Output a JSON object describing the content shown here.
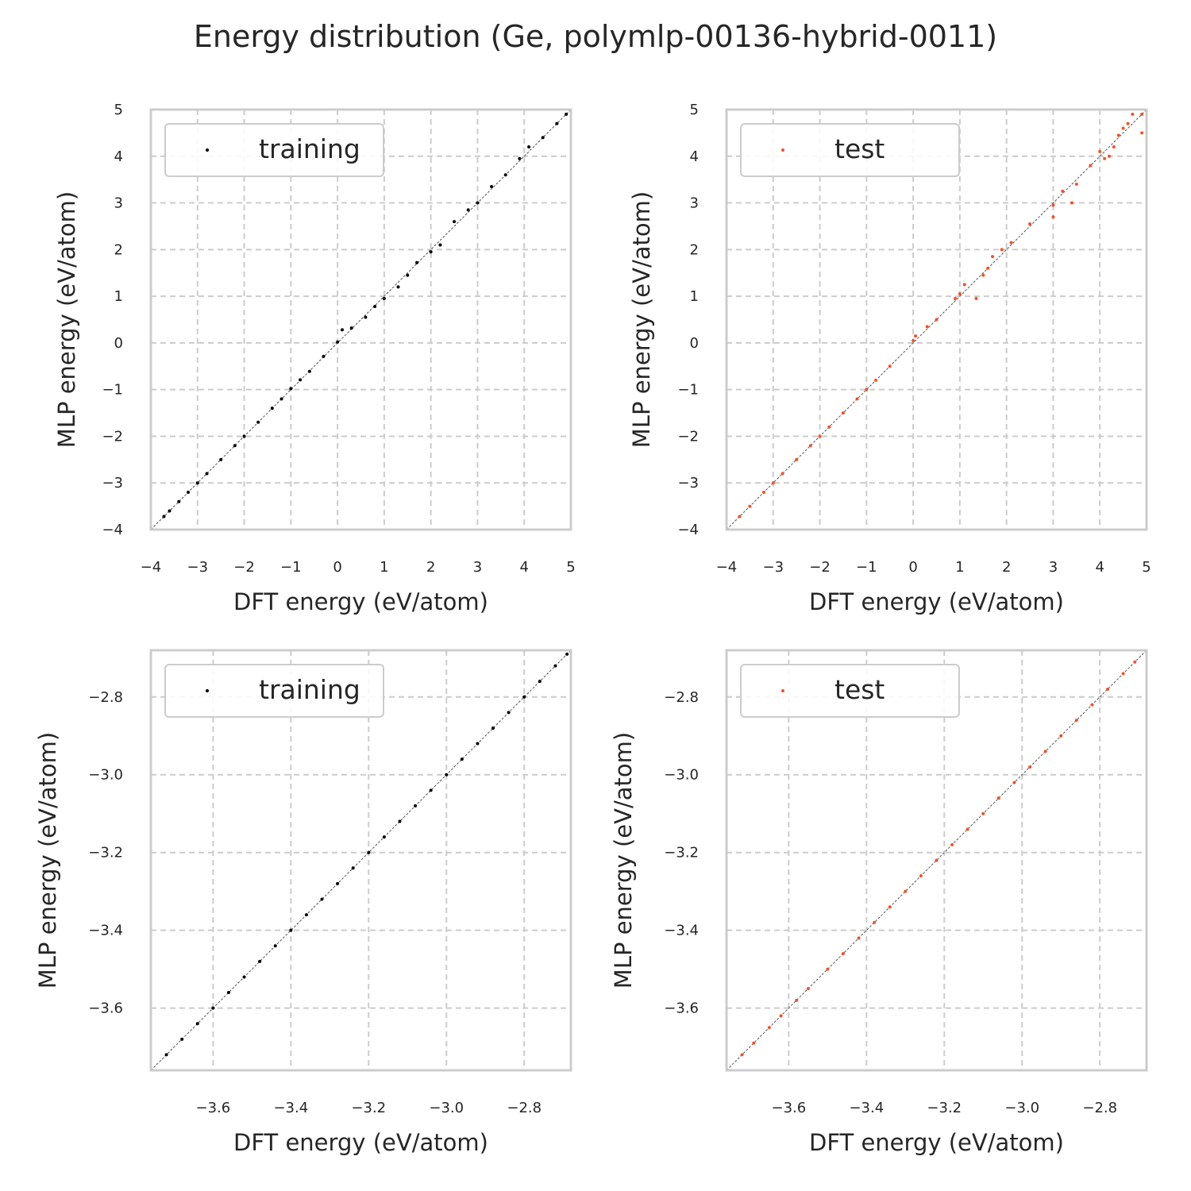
{
  "title": "Energy distribution (Ge, polymlp-00136-hybrid-0011)",
  "colors": {
    "training": "#000000",
    "test": "#f0522a",
    "grid": "#cccccc",
    "frame": "#cccccc",
    "diagonal": "#555555"
  },
  "chart_data": [
    {
      "type": "scatter",
      "xlabel": "DFT energy (eV/atom)",
      "ylabel": "MLP energy (eV/atom)",
      "xlim": [
        -4,
        5
      ],
      "ylim": [
        -4,
        5
      ],
      "xticks": [
        -4,
        -3,
        -2,
        -1,
        0,
        1,
        2,
        3,
        4,
        5
      ],
      "xtick_labels": [
        "−4",
        "−3",
        "−2",
        "−1",
        "0",
        "1",
        "2",
        "3",
        "4",
        "5"
      ],
      "yticks": [
        -4,
        -3,
        -2,
        -1,
        0,
        1,
        2,
        3,
        4,
        5
      ],
      "ytick_labels": [
        "−4",
        "−3",
        "−2",
        "−1",
        "0",
        "1",
        "2",
        "3",
        "4",
        "5"
      ],
      "grid": true,
      "legend_position": "upper-left",
      "series": [
        {
          "name": "training",
          "color": "#000000",
          "points": [
            [
              -3.72,
              -3.72
            ],
            [
              -3.6,
              -3.6
            ],
            [
              -3.4,
              -3.4
            ],
            [
              -3.2,
              -3.2
            ],
            [
              -3.0,
              -3.0
            ],
            [
              -2.8,
              -2.8
            ],
            [
              -2.5,
              -2.5
            ],
            [
              -2.2,
              -2.2
            ],
            [
              -2.0,
              -2.0
            ],
            [
              -1.7,
              -1.7
            ],
            [
              -1.4,
              -1.4
            ],
            [
              -1.2,
              -1.2
            ],
            [
              -1.0,
              -0.98
            ],
            [
              -0.8,
              -0.79
            ],
            [
              -0.6,
              -0.61
            ],
            [
              -0.3,
              -0.29
            ],
            [
              0.0,
              0.02
            ],
            [
              0.1,
              0.28
            ],
            [
              0.3,
              0.32
            ],
            [
              0.6,
              0.55
            ],
            [
              0.8,
              0.78
            ],
            [
              1.0,
              0.95
            ],
            [
              1.3,
              1.2
            ],
            [
              1.5,
              1.45
            ],
            [
              1.7,
              1.72
            ],
            [
              2.0,
              1.95
            ],
            [
              2.2,
              2.1
            ],
            [
              2.5,
              2.6
            ],
            [
              2.8,
              2.85
            ],
            [
              3.0,
              3.0
            ],
            [
              3.3,
              3.35
            ],
            [
              3.6,
              3.6
            ],
            [
              3.9,
              3.95
            ],
            [
              4.1,
              4.2
            ],
            [
              4.4,
              4.4
            ],
            [
              4.7,
              4.7
            ],
            [
              4.9,
              4.9
            ]
          ]
        }
      ]
    },
    {
      "type": "scatter",
      "xlabel": "DFT energy (eV/atom)",
      "ylabel": "MLP energy (eV/atom)",
      "xlim": [
        -4,
        5
      ],
      "ylim": [
        -4,
        5
      ],
      "xticks": [
        -4,
        -3,
        -2,
        -1,
        0,
        1,
        2,
        3,
        4,
        5
      ],
      "xtick_labels": [
        "−4",
        "−3",
        "−2",
        "−1",
        "0",
        "1",
        "2",
        "3",
        "4",
        "5"
      ],
      "yticks": [
        -4,
        -3,
        -2,
        -1,
        0,
        1,
        2,
        3,
        4,
        5
      ],
      "ytick_labels": [
        "−4",
        "−3",
        "−2",
        "−1",
        "0",
        "1",
        "2",
        "3",
        "4",
        "5"
      ],
      "grid": true,
      "legend_position": "upper-left",
      "series": [
        {
          "name": "test",
          "color": "#f0522a",
          "points": [
            [
              -3.72,
              -3.72
            ],
            [
              -3.5,
              -3.5
            ],
            [
              -3.2,
              -3.2
            ],
            [
              -3.0,
              -3.0
            ],
            [
              -2.8,
              -2.8
            ],
            [
              -2.5,
              -2.5
            ],
            [
              -2.2,
              -2.2
            ],
            [
              -2.0,
              -2.0
            ],
            [
              -1.8,
              -1.8
            ],
            [
              -1.5,
              -1.5
            ],
            [
              -1.2,
              -1.2
            ],
            [
              -1.0,
              -1.0
            ],
            [
              -0.8,
              -0.8
            ],
            [
              -0.5,
              -0.5
            ],
            [
              0.0,
              0.05
            ],
            [
              0.05,
              0.15
            ],
            [
              0.3,
              0.35
            ],
            [
              0.5,
              0.5
            ],
            [
              0.9,
              0.95
            ],
            [
              1.0,
              1.05
            ],
            [
              1.1,
              1.25
            ],
            [
              1.35,
              0.95
            ],
            [
              1.5,
              1.45
            ],
            [
              1.6,
              1.6
            ],
            [
              1.7,
              1.85
            ],
            [
              1.9,
              2.0
            ],
            [
              2.1,
              2.15
            ],
            [
              2.5,
              2.55
            ],
            [
              3.0,
              2.7
            ],
            [
              3.0,
              2.95
            ],
            [
              3.2,
              3.25
            ],
            [
              3.4,
              3.0
            ],
            [
              3.5,
              3.4
            ],
            [
              3.8,
              3.8
            ],
            [
              4.0,
              4.1
            ],
            [
              4.1,
              3.95
            ],
            [
              4.2,
              4.0
            ],
            [
              4.3,
              4.2
            ],
            [
              4.4,
              4.45
            ],
            [
              4.5,
              4.6
            ],
            [
              4.6,
              4.7
            ],
            [
              4.7,
              4.9
            ],
            [
              4.9,
              4.5
            ],
            [
              4.9,
              4.9
            ]
          ]
        }
      ]
    },
    {
      "type": "scatter",
      "xlabel": "DFT energy (eV/atom)",
      "ylabel": "MLP energy (eV/atom)",
      "xlim": [
        -3.76,
        -2.68
      ],
      "ylim": [
        -3.76,
        -2.68
      ],
      "xticks": [
        -3.6,
        -3.4,
        -3.2,
        -3.0,
        -2.8
      ],
      "xtick_labels": [
        "−3.6",
        "−3.4",
        "−3.2",
        "−3.0",
        "−2.8"
      ],
      "yticks": [
        -3.6,
        -3.4,
        -3.2,
        -3.0,
        -2.8
      ],
      "ytick_labels": [
        "−3.6",
        "−3.4",
        "−3.2",
        "−3.0",
        "−2.8"
      ],
      "grid": true,
      "legend_position": "upper-left",
      "series": [
        {
          "name": "training",
          "color": "#000000",
          "points": [
            [
              -3.72,
              -3.72
            ],
            [
              -3.68,
              -3.68
            ],
            [
              -3.64,
              -3.64
            ],
            [
              -3.6,
              -3.6
            ],
            [
              -3.56,
              -3.56
            ],
            [
              -3.52,
              -3.52
            ],
            [
              -3.48,
              -3.48
            ],
            [
              -3.44,
              -3.44
            ],
            [
              -3.4,
              -3.4
            ],
            [
              -3.36,
              -3.36
            ],
            [
              -3.32,
              -3.32
            ],
            [
              -3.28,
              -3.28
            ],
            [
              -3.24,
              -3.24
            ],
            [
              -3.2,
              -3.2
            ],
            [
              -3.16,
              -3.16
            ],
            [
              -3.12,
              -3.12
            ],
            [
              -3.08,
              -3.08
            ],
            [
              -3.04,
              -3.04
            ],
            [
              -3.0,
              -3.0
            ],
            [
              -2.96,
              -2.96
            ],
            [
              -2.92,
              -2.92
            ],
            [
              -2.88,
              -2.88
            ],
            [
              -2.84,
              -2.84
            ],
            [
              -2.8,
              -2.8
            ],
            [
              -2.76,
              -2.76
            ],
            [
              -2.72,
              -2.72
            ],
            [
              -2.69,
              -2.69
            ]
          ]
        }
      ]
    },
    {
      "type": "scatter",
      "xlabel": "DFT energy (eV/atom)",
      "ylabel": "MLP energy (eV/atom)",
      "xlim": [
        -3.76,
        -2.68
      ],
      "ylim": [
        -3.76,
        -2.68
      ],
      "xticks": [
        -3.6,
        -3.4,
        -3.2,
        -3.0,
        -2.8
      ],
      "xtick_labels": [
        "−3.6",
        "−3.4",
        "−3.2",
        "−3.0",
        "−2.8"
      ],
      "yticks": [
        -3.6,
        -3.4,
        -3.2,
        -3.0,
        -2.8
      ],
      "ytick_labels": [
        "−3.6",
        "−3.4",
        "−3.2",
        "−3.0",
        "−2.8"
      ],
      "grid": true,
      "legend_position": "upper-left",
      "series": [
        {
          "name": "test",
          "color": "#f0522a",
          "points": [
            [
              -3.72,
              -3.72
            ],
            [
              -3.69,
              -3.69
            ],
            [
              -3.65,
              -3.65
            ],
            [
              -3.62,
              -3.62
            ],
            [
              -3.58,
              -3.58
            ],
            [
              -3.55,
              -3.55
            ],
            [
              -3.5,
              -3.5
            ],
            [
              -3.46,
              -3.46
            ],
            [
              -3.42,
              -3.42
            ],
            [
              -3.38,
              -3.38
            ],
            [
              -3.34,
              -3.34
            ],
            [
              -3.3,
              -3.3
            ],
            [
              -3.26,
              -3.26
            ],
            [
              -3.22,
              -3.22
            ],
            [
              -3.18,
              -3.18
            ],
            [
              -3.14,
              -3.14
            ],
            [
              -3.1,
              -3.1
            ],
            [
              -3.06,
              -3.06
            ],
            [
              -3.02,
              -3.02
            ],
            [
              -2.98,
              -2.98
            ],
            [
              -2.94,
              -2.94
            ],
            [
              -2.9,
              -2.9
            ],
            [
              -2.86,
              -2.86
            ],
            [
              -2.82,
              -2.82
            ],
            [
              -2.78,
              -2.78
            ],
            [
              -2.74,
              -2.74
            ],
            [
              -2.71,
              -2.71
            ]
          ]
        }
      ]
    }
  ]
}
